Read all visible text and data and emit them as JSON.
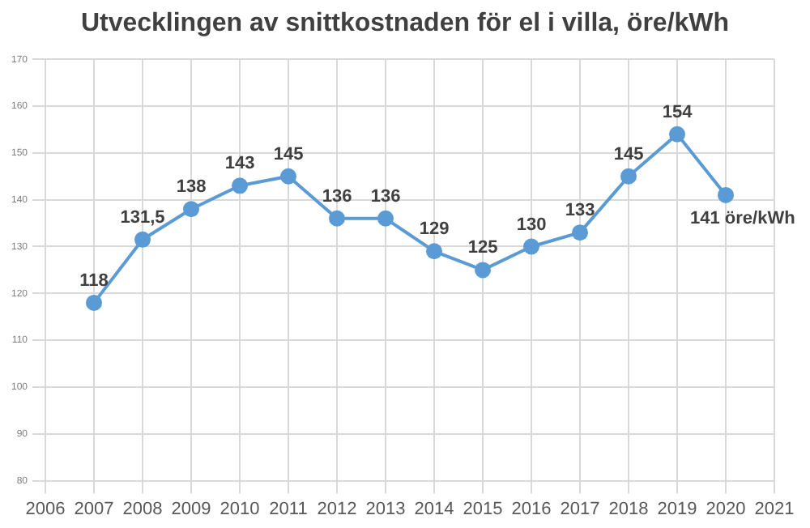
{
  "chart_data": {
    "type": "line",
    "title": "Utvecklingen av snittkostnaden för el i villa, öre/kWh",
    "x": [
      2007,
      2008,
      2009,
      2010,
      2011,
      2012,
      2013,
      2014,
      2015,
      2016,
      2017,
      2018,
      2019,
      2020
    ],
    "series": [
      {
        "color": "#5b9bd5",
        "values": [
          118,
          131.5,
          138,
          143,
          145,
          136,
          136,
          129,
          125,
          130,
          133,
          145,
          154,
          141
        ],
        "value_labels": [
          "118",
          "131,5",
          "138",
          "143",
          "145",
          "136",
          "136",
          "129",
          "125",
          "130",
          "133",
          "145",
          "154",
          "141 öre/kWh"
        ]
      }
    ],
    "xlim": [
      2006,
      2021
    ],
    "xticks": [
      2006,
      2007,
      2008,
      2009,
      2010,
      2011,
      2012,
      2013,
      2014,
      2015,
      2016,
      2017,
      2018,
      2019,
      2020,
      2021
    ],
    "ylim": [
      80,
      170
    ],
    "yticks": [
      80,
      90,
      100,
      110,
      120,
      130,
      140,
      150,
      160,
      170
    ],
    "grid": true,
    "legend": false,
    "marker": "circle",
    "line_style": "solid"
  }
}
